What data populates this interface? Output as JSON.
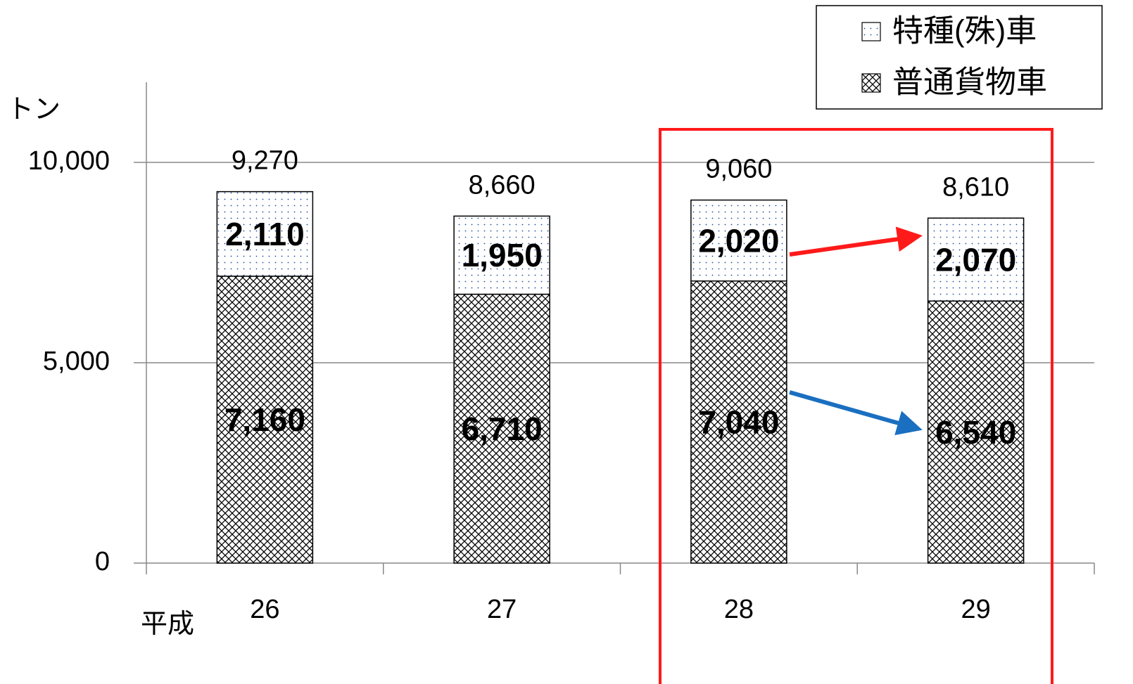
{
  "chart_data": {
    "type": "stacked_bar",
    "y_axis_label": "トン",
    "x_axis_label": "平成",
    "categories": [
      "26",
      "27",
      "28",
      "29"
    ],
    "series": [
      {
        "name": "普通貨物車",
        "pattern": "crosshatch",
        "color": "#000000",
        "values": [
          7160,
          6710,
          7040,
          6540
        ],
        "value_labels": [
          "7,160",
          "6,710",
          "7,040",
          "6,540"
        ]
      },
      {
        "name": "特種(殊)車",
        "pattern": "dots",
        "color": "#1f4e9a",
        "values": [
          2110,
          1950,
          2020,
          2070
        ],
        "value_labels": [
          "2,110",
          "1,950",
          "2,020",
          "2,070"
        ]
      }
    ],
    "totals": [
      9270,
      8660,
      9060,
      8610
    ],
    "total_labels": [
      "9,270",
      "8,660",
      "9,060",
      "8,610"
    ],
    "ylim": [
      0,
      12000
    ],
    "yticks": [
      0,
      {
        "value": 5000,
        "label": "5,000"
      },
      {
        "value": 10000,
        "label": "10,000"
      }
    ],
    "grid": true,
    "legend": "top-right"
  }
}
